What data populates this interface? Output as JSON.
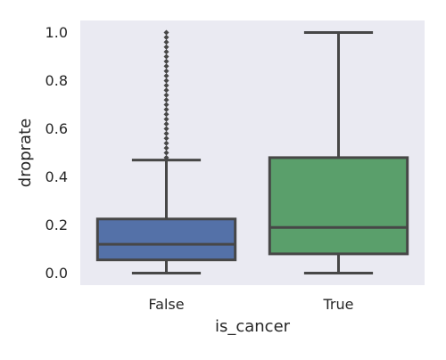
{
  "chart_data": {
    "type": "box",
    "title": "",
    "xlabel": "is_cancer",
    "ylabel": "droprate",
    "categories": [
      "False",
      "True"
    ],
    "ylim": [
      -0.05,
      1.05
    ],
    "yticks": [
      "0.0",
      "0.2",
      "0.4",
      "0.6",
      "0.8",
      "1.0"
    ],
    "grid": false,
    "legend": "none",
    "boxes": [
      {
        "category": "False",
        "whisker_low": 0.0,
        "q1": 0.055,
        "median": 0.12,
        "q3": 0.225,
        "whisker_high": 0.47,
        "outliers": [
          0.48,
          0.5,
          0.52,
          0.54,
          0.56,
          0.58,
          0.6,
          0.62,
          0.64,
          0.66,
          0.68,
          0.7,
          0.72,
          0.74,
          0.76,
          0.78,
          0.8,
          0.82,
          0.84,
          0.86,
          0.88,
          0.9,
          0.92,
          0.94,
          0.96,
          0.98,
          1.0
        ],
        "color": "#5471a8"
      },
      {
        "category": "True",
        "whisker_low": 0.0,
        "q1": 0.08,
        "median": 0.19,
        "q3": 0.48,
        "whisker_high": 1.0,
        "outliers": [],
        "color": "#5a9f6b"
      }
    ],
    "colors": {
      "background": "#eaeaf2",
      "line": "#474747"
    }
  }
}
